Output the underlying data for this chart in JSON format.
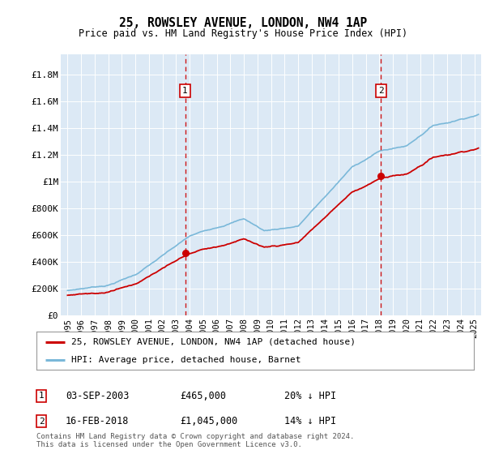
{
  "title": "25, ROWSLEY AVENUE, LONDON, NW4 1AP",
  "subtitle": "Price paid vs. HM Land Registry's House Price Index (HPI)",
  "ylabel_ticks": [
    "£0",
    "£200K",
    "£400K",
    "£600K",
    "£800K",
    "£1M",
    "£1.2M",
    "£1.4M",
    "£1.6M",
    "£1.8M"
  ],
  "ylabel_values": [
    0,
    200000,
    400000,
    600000,
    800000,
    1000000,
    1200000,
    1400000,
    1600000,
    1800000
  ],
  "ylim": [
    0,
    1950000
  ],
  "xlim_start": 1994.5,
  "xlim_end": 2025.5,
  "hpi_color": "#7ab8d9",
  "price_color": "#cc0000",
  "dashed_color": "#cc0000",
  "bg_color": "#dce9f5",
  "legend_label_red": "25, ROWSLEY AVENUE, LONDON, NW4 1AP (detached house)",
  "legend_label_blue": "HPI: Average price, detached house, Barnet",
  "marker1_date": 2003.67,
  "marker1_label": "1",
  "marker1_price": 465000,
  "marker1_text": "03-SEP-2003",
  "marker1_amount": "£465,000",
  "marker1_pct": "20% ↓ HPI",
  "marker2_date": 2018.12,
  "marker2_label": "2",
  "marker2_price": 1045000,
  "marker2_text": "16-FEB-2018",
  "marker2_amount": "£1,045,000",
  "marker2_pct": "14% ↓ HPI",
  "footer": "Contains HM Land Registry data © Crown copyright and database right 2024.\nThis data is licensed under the Open Government Licence v3.0."
}
